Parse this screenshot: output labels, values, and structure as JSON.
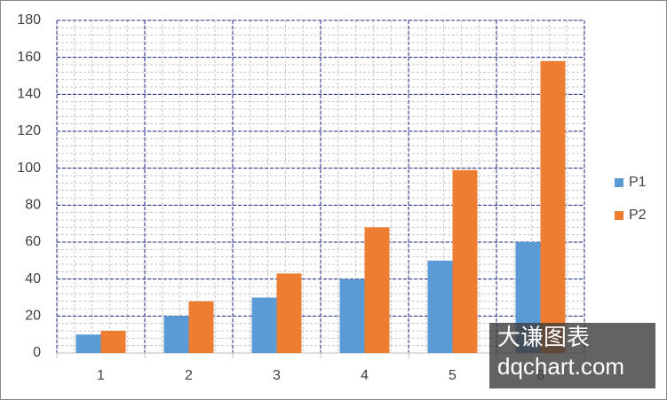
{
  "chart_data": {
    "type": "bar",
    "categories": [
      "1",
      "2",
      "3",
      "4",
      "5",
      "6"
    ],
    "series": [
      {
        "name": "P1",
        "color": "#5b9bd5",
        "values": [
          10,
          20,
          30,
          40,
          50,
          60
        ]
      },
      {
        "name": "P2",
        "color": "#ed7d31",
        "values": [
          12,
          28,
          43,
          68,
          99,
          158
        ]
      }
    ],
    "ylim": [
      0,
      180
    ],
    "yticks": [
      0,
      20,
      40,
      60,
      80,
      100,
      120,
      140,
      160,
      180
    ],
    "grid": true,
    "minor_grid": true,
    "legend": "right",
    "watermark": [
      "大谦图表",
      "dqchart.com"
    ]
  }
}
